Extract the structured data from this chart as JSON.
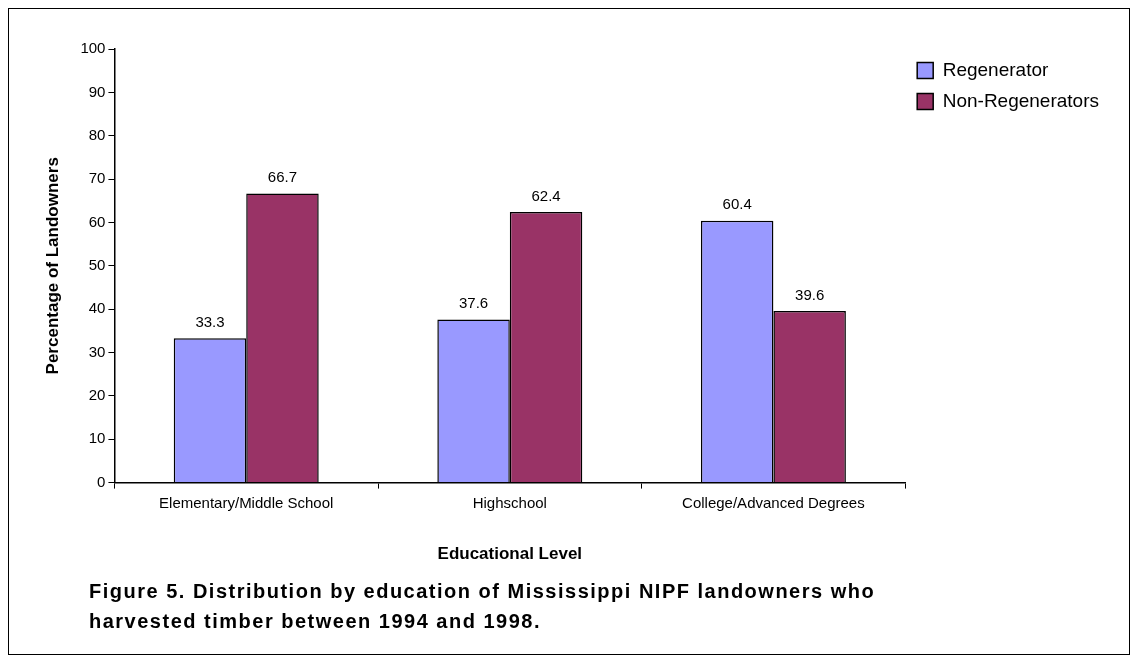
{
  "chart_data": {
    "type": "bar",
    "title": "Figure 5. Distribution by education of Mississippi NIPF landowners who harvested timber between 1994 and 1998.",
    "xlabel": "Educational Level",
    "ylabel": "Percentage of Landowners",
    "categories": [
      "Elementary/Middle School",
      "Highschool",
      "College/Advanced Degrees"
    ],
    "series": [
      {
        "name": "Regenerator",
        "color": "#9999ff",
        "values": [
          33.3,
          37.6,
          60.4
        ]
      },
      {
        "name": "Non-Regenerators",
        "color": "#993366",
        "values": [
          66.7,
          62.4,
          39.6
        ]
      }
    ],
    "ylim": [
      0,
      100
    ],
    "yticks": [
      0,
      10,
      20,
      30,
      40,
      50,
      60,
      70,
      80,
      90,
      100
    ],
    "grid": false,
    "legend": "top right",
    "data_labels": true
  }
}
